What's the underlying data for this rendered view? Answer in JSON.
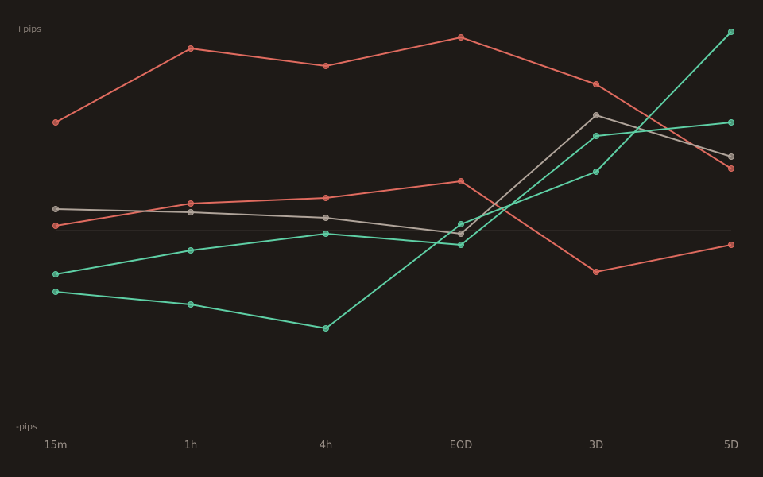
{
  "chart_data": {
    "type": "line",
    "categories": [
      "15m",
      "1h",
      "4h",
      "EOD",
      "3D",
      "5D"
    ],
    "y_top_label": "+pips",
    "y_bottom_label": "-pips",
    "ylim": [
      -100,
      100
    ],
    "zero_line": true,
    "grid": false,
    "legend": "none",
    "series": [
      {
        "color": "#e06b5f",
        "values": [
          54.4,
          91.6,
          82.8,
          97.2,
          73.6,
          31.2
        ]
      },
      {
        "color": "#e06b5f",
        "values": [
          2.4,
          13.6,
          16.4,
          24.8,
          -20.8,
          -7.2
        ]
      },
      {
        "color": "#b0a49a",
        "values": [
          10.8,
          9.2,
          6.4,
          -1.6,
          58.0,
          37.2
        ]
      },
      {
        "color": "#5ecfa5",
        "values": [
          -22.0,
          -10.0,
          -1.6,
          -7.2,
          47.6,
          54.4
        ]
      },
      {
        "color": "#5ecfa5",
        "values": [
          -30.8,
          -37.2,
          -49.2,
          3.2,
          29.6,
          100.0
        ]
      }
    ]
  },
  "colors": {
    "background": "#1e1a17",
    "axis_text": "#8a8079",
    "tick_text": "#9d938b",
    "zero_line": "#3a3430"
  }
}
